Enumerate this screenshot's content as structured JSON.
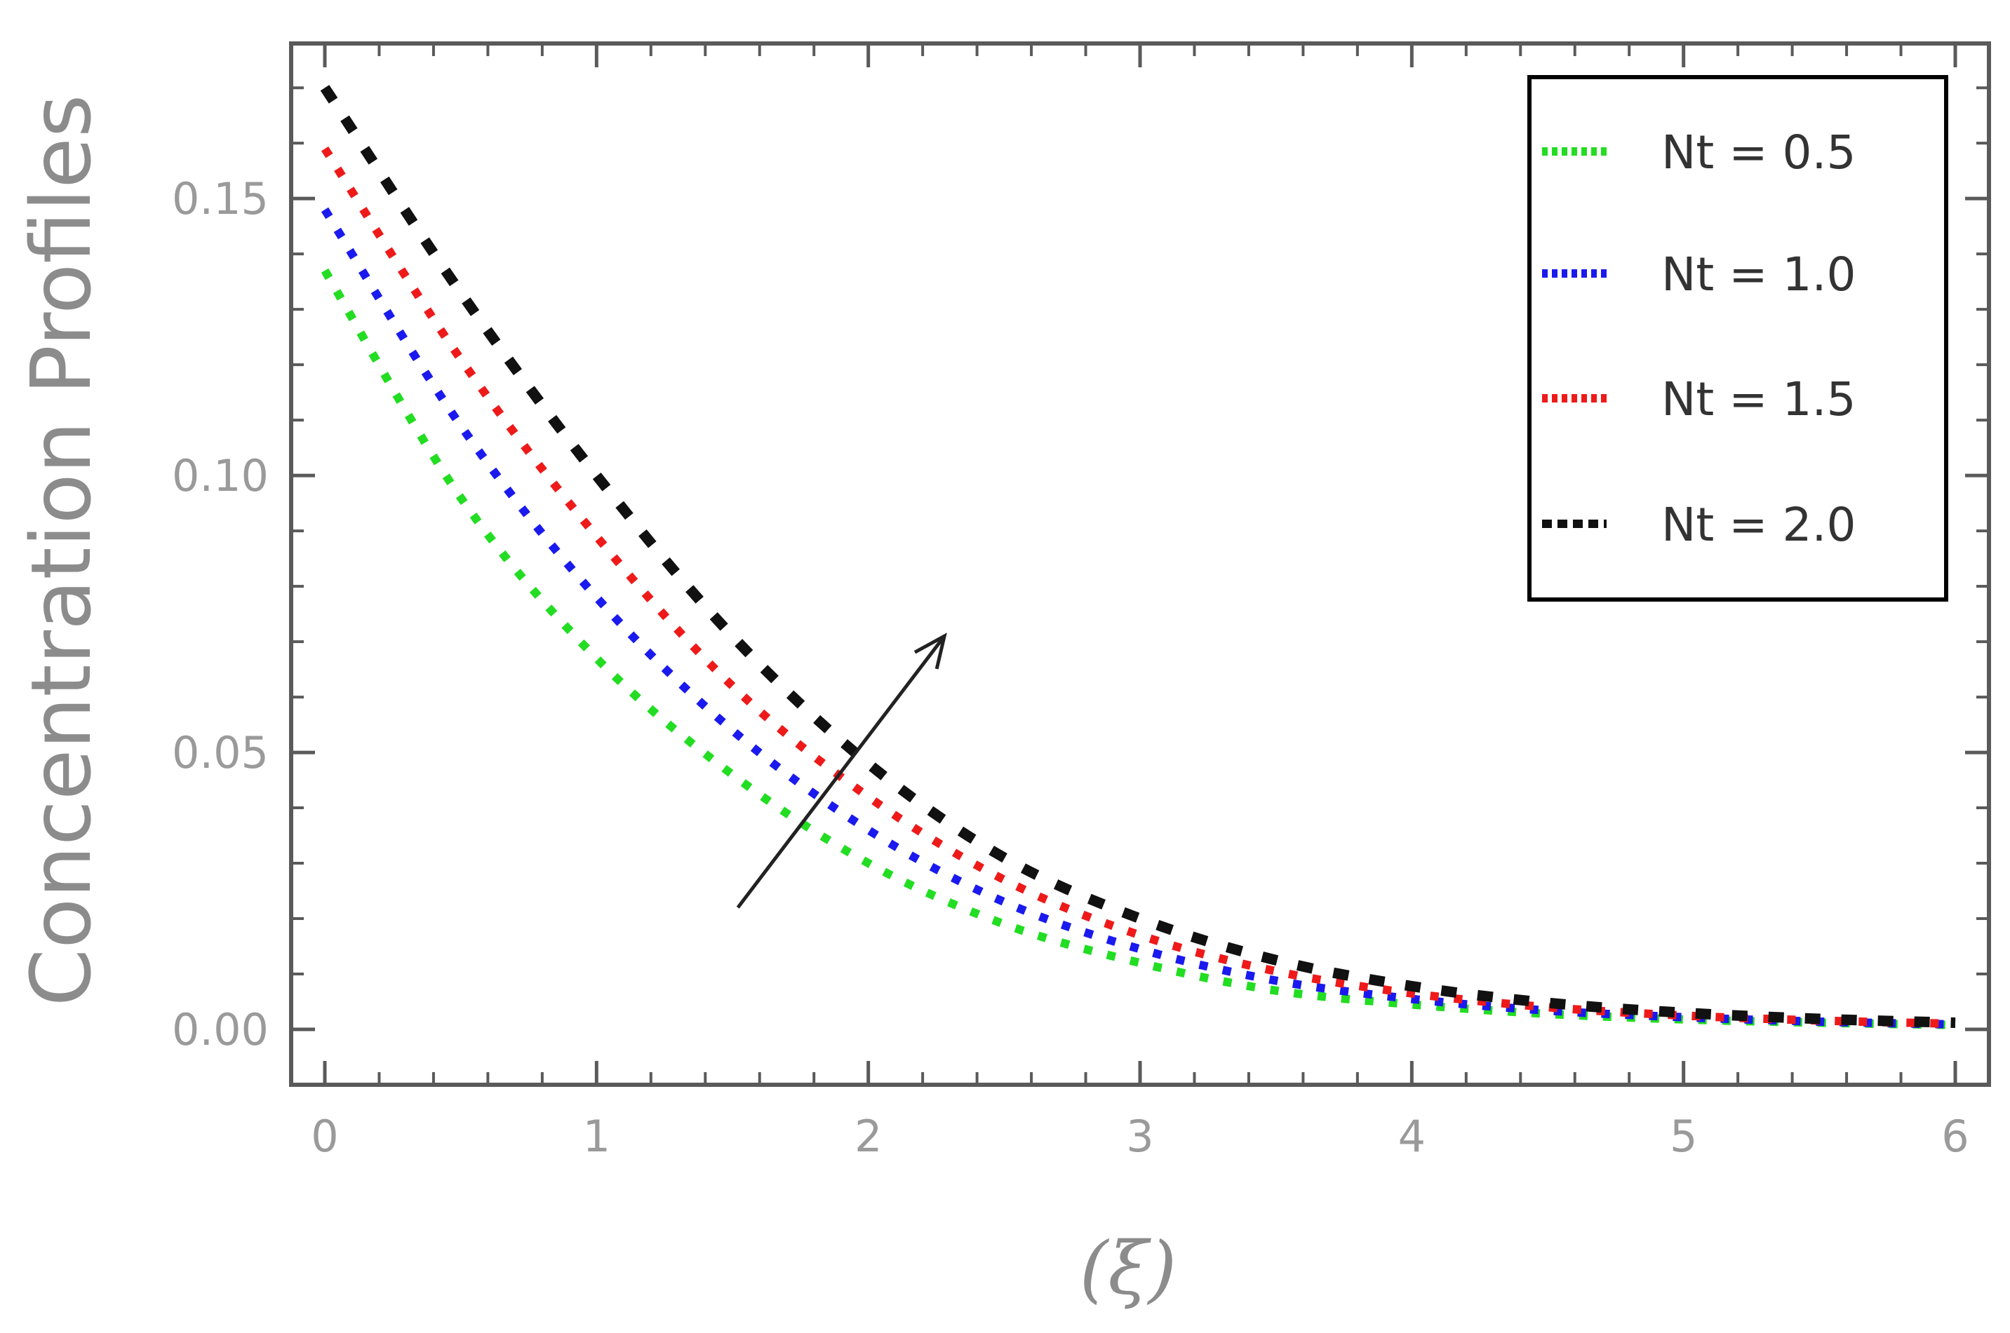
{
  "chart_data": {
    "type": "line",
    "xlabel": "(ξ)",
    "ylabel": "Concentration Profiles",
    "xlim": [
      0,
      6
    ],
    "ylim": [
      -0.01,
      0.178
    ],
    "x_ticks": [
      0,
      1,
      2,
      3,
      4,
      5,
      6
    ],
    "x_tick_labels": [
      "0",
      "1",
      "2",
      "3",
      "4",
      "5",
      "6"
    ],
    "y_ticks": [
      0.0,
      0.05,
      0.1,
      0.15
    ],
    "y_tick_labels": [
      "0.00",
      "0.05",
      "0.10",
      "0.15"
    ],
    "grid": false,
    "legend_position": "top-right",
    "x": [
      0,
      0.5,
      1.0,
      1.5,
      2.0,
      2.5,
      3.0,
      3.5,
      4.0,
      4.5,
      5.0,
      5.5,
      6.0
    ],
    "series": [
      {
        "name": "Nt = 0.5",
        "color": "#22dd22",
        "style": "dotted",
        "values": [
          0.137,
          0.096,
          0.067,
          0.046,
          0.03,
          0.019,
          0.012,
          0.007,
          0.0045,
          0.0028,
          0.0018,
          0.0012,
          0.0008
        ]
      },
      {
        "name": "Nt = 1.0",
        "color": "#1a1aee",
        "style": "dotted",
        "values": [
          0.148,
          0.109,
          0.078,
          0.054,
          0.036,
          0.023,
          0.0145,
          0.0088,
          0.0055,
          0.0034,
          0.0022,
          0.0014,
          0.0009
        ]
      },
      {
        "name": "Nt = 1.5",
        "color": "#ee1a1a",
        "style": "dotted",
        "values": [
          0.159,
          0.121,
          0.089,
          0.062,
          0.042,
          0.027,
          0.017,
          0.0105,
          0.0065,
          0.004,
          0.0025,
          0.0016,
          0.001
        ]
      },
      {
        "name": "Nt = 2.0",
        "color": "#111111",
        "style": "dashed",
        "values": [
          0.17,
          0.133,
          0.1,
          0.071,
          0.048,
          0.031,
          0.02,
          0.0125,
          0.0078,
          0.0048,
          0.003,
          0.0019,
          0.0012
        ]
      }
    ],
    "annotations": [
      {
        "type": "arrow",
        "meaning": "increasing Nt",
        "from": [
          1.52,
          0.022
        ],
        "to": [
          2.28,
          0.071
        ]
      }
    ]
  }
}
